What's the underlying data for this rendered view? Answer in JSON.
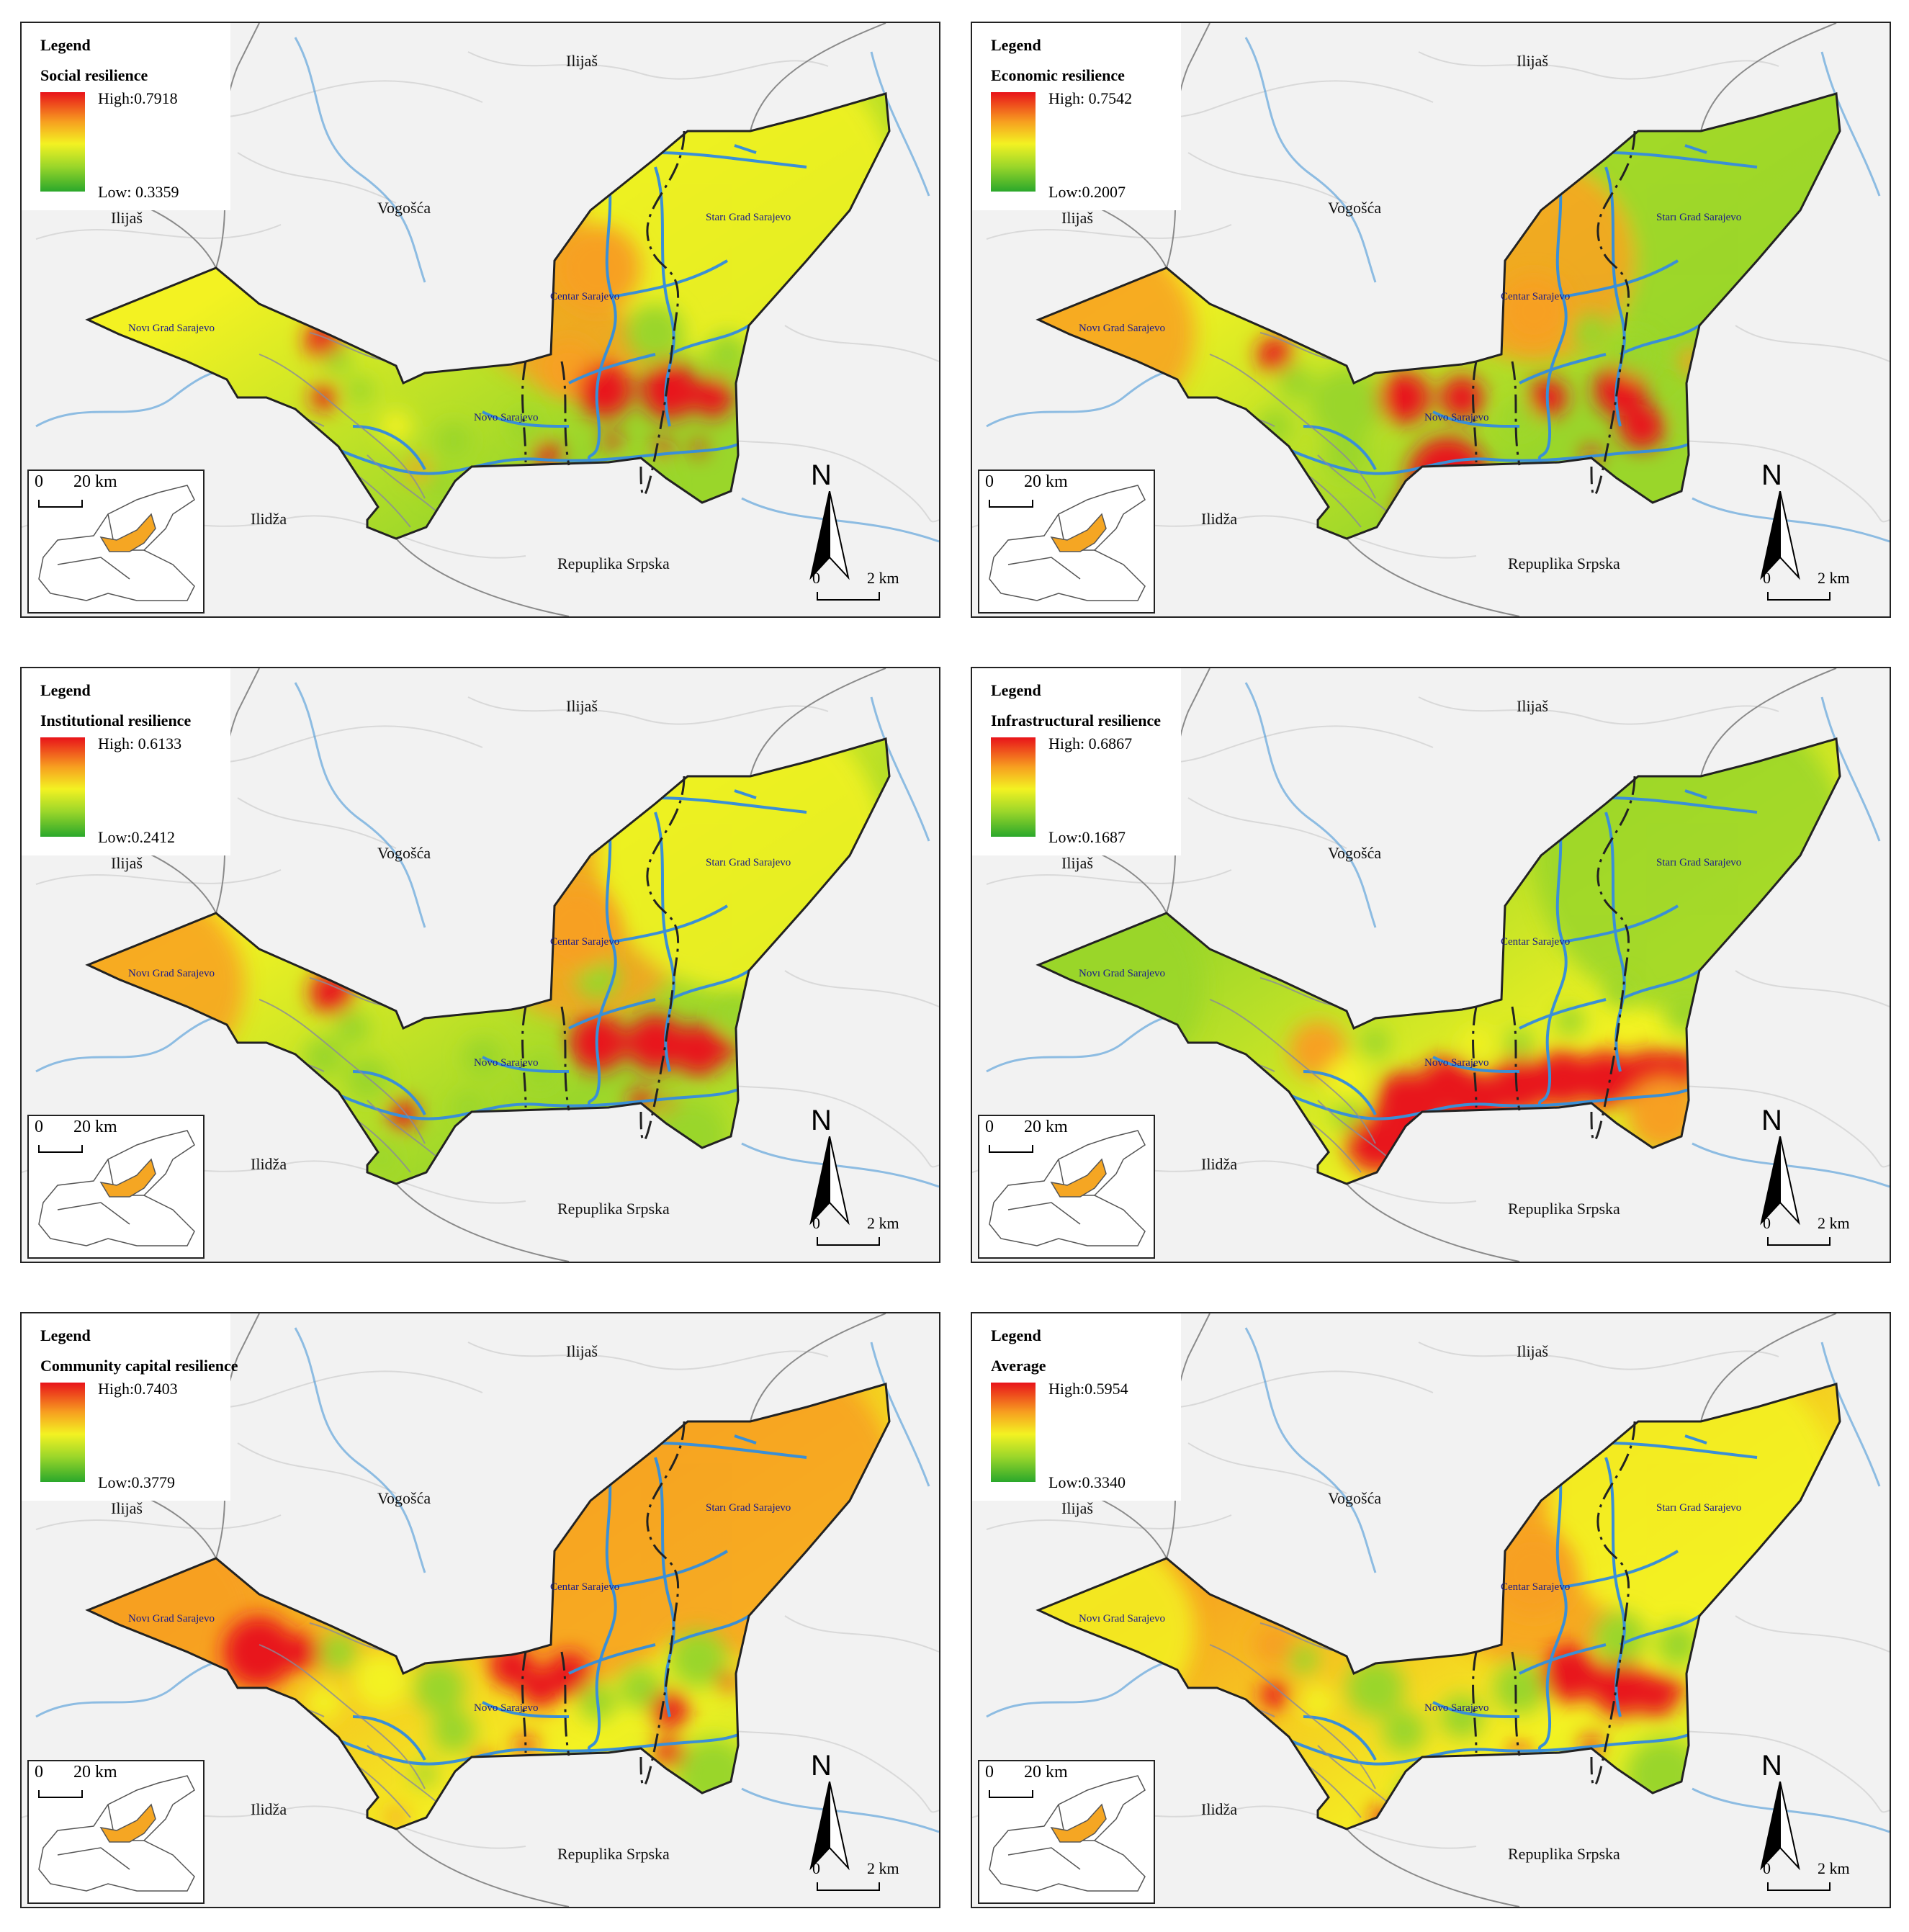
{
  "colors": {
    "high": "#e8131a",
    "mid_high": "#f7a020",
    "mid": "#f3f222",
    "mid_low": "#9ad62a",
    "low": "#2aa82b",
    "river": "#3a8fd6",
    "boundary": "#222222",
    "inset_fill": "#f5a623"
  },
  "common": {
    "legend_title": "Legend",
    "north_label": "N",
    "scale_start": "0",
    "scale_end": "2 km",
    "inset_scale_start": "0",
    "inset_scale_end": "20 km",
    "places": {
      "ilijas_top": "Ilijaš",
      "ilijas_left": "Ilijaš",
      "vogosca": "Vogošća",
      "ilidza": "Ilidža",
      "republika_srpska": "Repuplika Srpska",
      "stari_grad": "Starı Grad Sarajevo",
      "centar": "Centar Sarajevo",
      "novi_grad": "Novı Grad Sarajevo",
      "novo_sarajevo": "Novo Sarajevo"
    }
  },
  "panels": [
    {
      "title": "Social resilience",
      "high": "High:0.7918",
      "low": "Low: 0.3359",
      "theme": "social"
    },
    {
      "title": "Economic resilience",
      "high": "High: 0.7542",
      "low": "Low:0.2007",
      "theme": "economic"
    },
    {
      "title": "Institutional  resilience",
      "high": "High:  0.6133",
      "low": "Low:0.2412",
      "theme": "institutional"
    },
    {
      "title": "Infrastructural resilience",
      "high": "High: 0.6867",
      "low": "Low:0.1687",
      "theme": "infrastructural"
    },
    {
      "title": "Community capital resilience",
      "high": "High:0.7403",
      "low": "Low:0.3779",
      "theme": "community"
    },
    {
      "title": "Average",
      "high": "High:0.5954",
      "low": "Low:0.3340",
      "theme": "average"
    }
  ]
}
